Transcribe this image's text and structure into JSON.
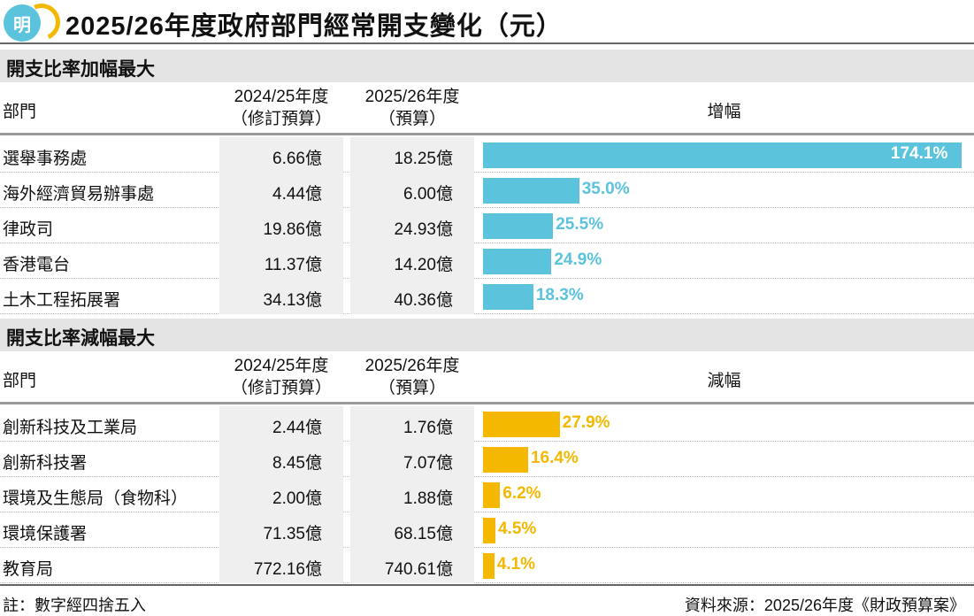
{
  "logo_text": "明",
  "title": "2025/26年度政府部門經常開支變化（元）",
  "colors": {
    "increase": "#5bc3dc",
    "decrease": "#f5b800"
  },
  "increase": {
    "heading": "開支比率加幅最大",
    "col_dept": "部門",
    "col_prev": [
      "2024/25年度",
      "（修訂預算）"
    ],
    "col_cur": [
      "2025/26年度",
      "（預算）"
    ],
    "col_change": "增幅",
    "rows": [
      {
        "dept": "選舉事務處",
        "prev": "6.66億",
        "cur": "18.25億",
        "pct": 174.1,
        "label": "174.1%"
      },
      {
        "dept": "海外經濟貿易辦事處",
        "prev": "4.44億",
        "cur": "6.00億",
        "pct": 35.0,
        "label": "35.0%"
      },
      {
        "dept": "律政司",
        "prev": "19.86億",
        "cur": "24.93億",
        "pct": 25.5,
        "label": "25.5%"
      },
      {
        "dept": "香港電台",
        "prev": "11.37億",
        "cur": "14.20億",
        "pct": 24.9,
        "label": "24.9%"
      },
      {
        "dept": "土木工程拓展署",
        "prev": "34.13億",
        "cur": "40.36億",
        "pct": 18.3,
        "label": "18.3%"
      }
    ]
  },
  "decrease": {
    "heading": "開支比率減幅最大",
    "col_dept": "部門",
    "col_prev": [
      "2024/25年度",
      "（修訂預算）"
    ],
    "col_cur": [
      "2025/26年度",
      "（預算）"
    ],
    "col_change": "減幅",
    "rows": [
      {
        "dept": "創新科技及工業局",
        "prev": "2.44億",
        "cur": "1.76億",
        "pct": 27.9,
        "label": "27.9%"
      },
      {
        "dept": "創新科技署",
        "prev": "8.45億",
        "cur": "7.07億",
        "pct": 16.4,
        "label": "16.4%"
      },
      {
        "dept": "環境及生態局（食物科）",
        "prev": "2.00億",
        "cur": "1.88億",
        "pct": 6.2,
        "label": "6.2%"
      },
      {
        "dept": "環境保護署",
        "prev": "71.35億",
        "cur": "68.15億",
        "pct": 4.5,
        "label": "4.5%"
      },
      {
        "dept": "教育局",
        "prev": "772.16億",
        "cur": "740.61億",
        "pct": 4.1,
        "label": "4.1%"
      }
    ]
  },
  "footer": {
    "note": "註：數字經四捨五入",
    "source": "資料來源：2025/26年度《財政預算案》"
  }
}
